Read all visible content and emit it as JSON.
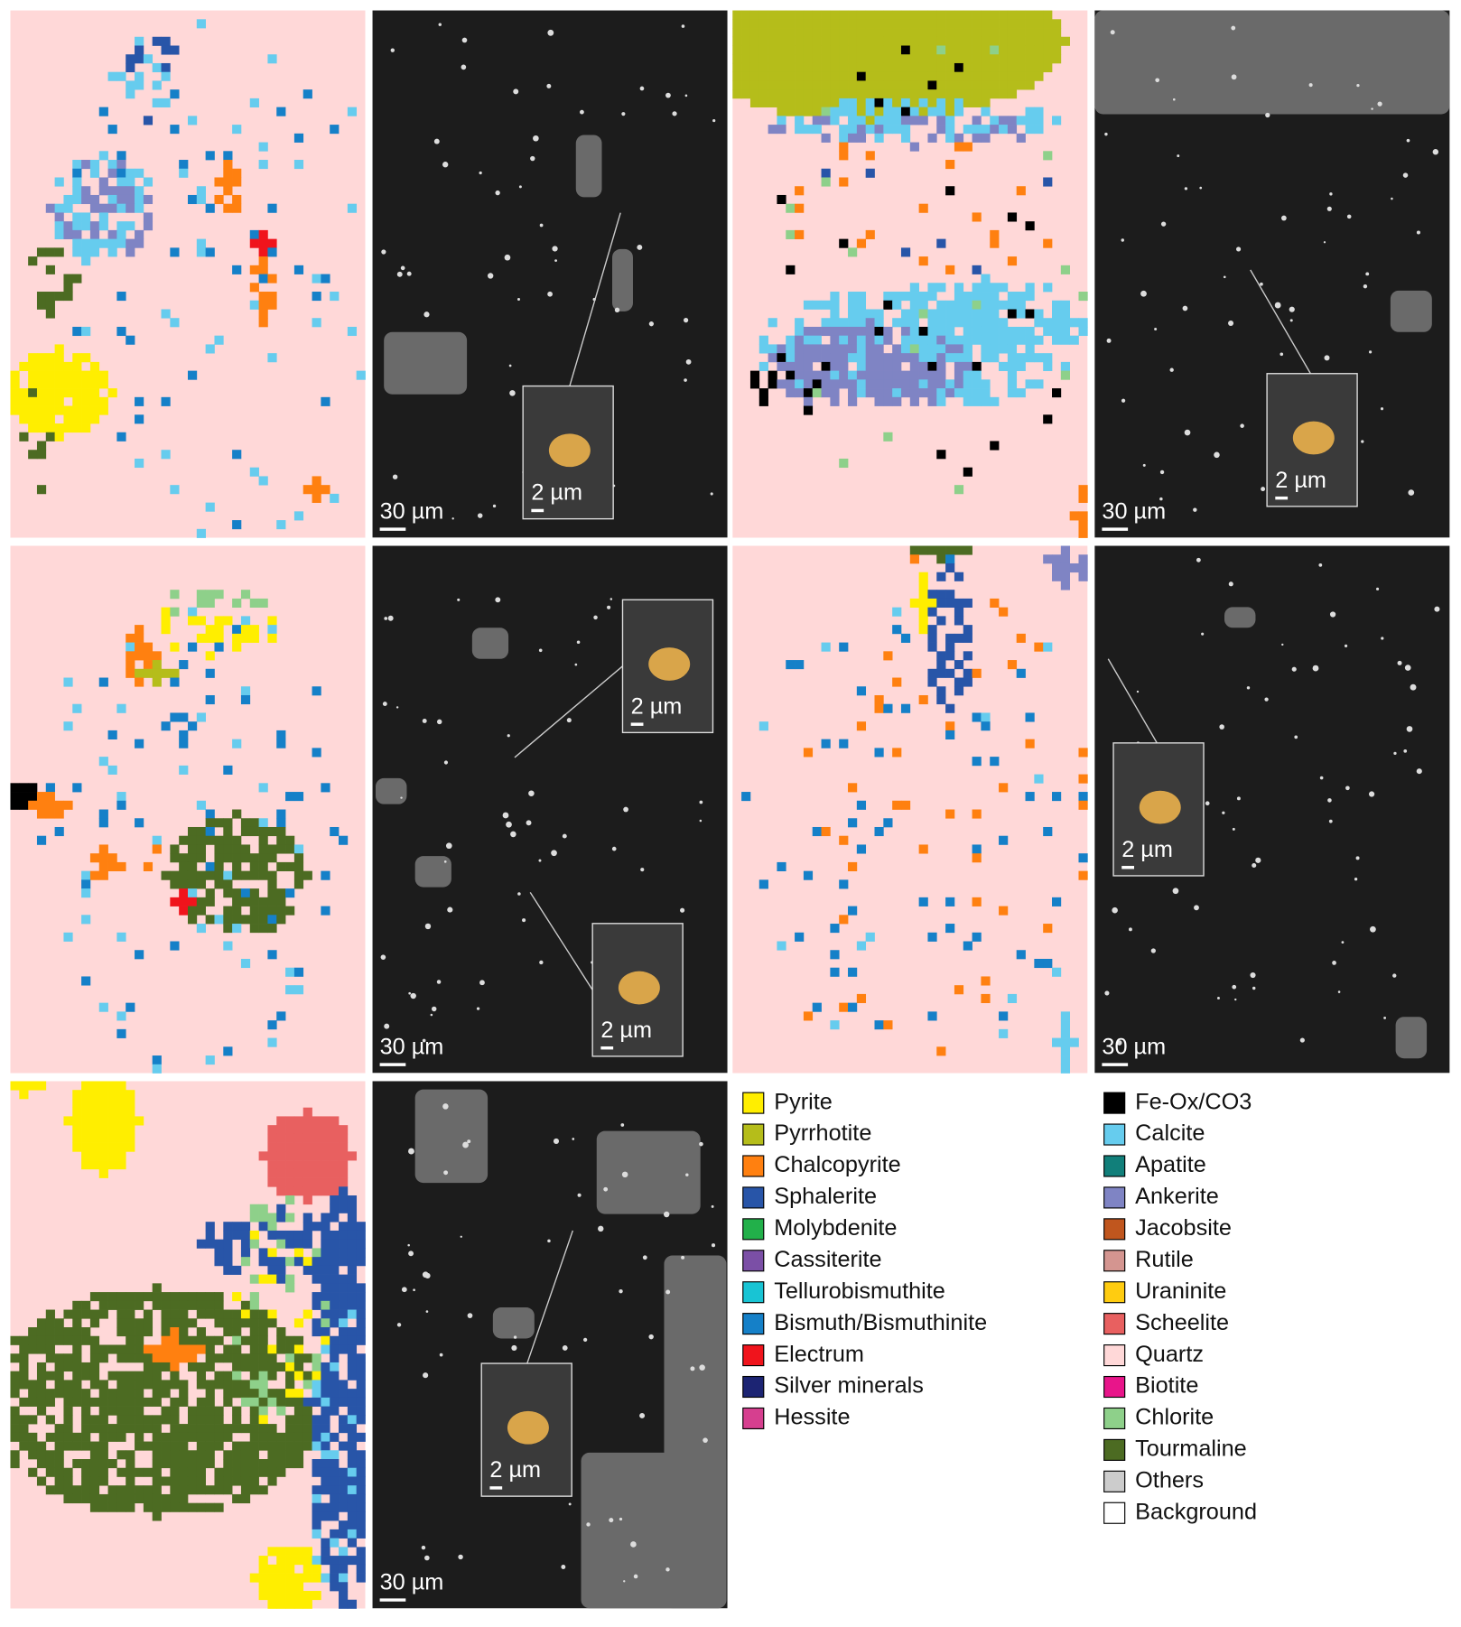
{
  "figure": {
    "sem_images": [
      {
        "scale_bar": "30 µm",
        "insets": [
          "2 µm"
        ]
      },
      {
        "scale_bar": "30 µm",
        "insets": [
          "2 µm"
        ]
      },
      {
        "scale_bar": "30 µm",
        "insets": [
          "2 µm",
          "2 µm"
        ]
      },
      {
        "scale_bar": "30 µm",
        "insets": [
          "2 µm"
        ]
      },
      {
        "scale_bar": "30 µm",
        "insets": [
          "2 µm"
        ]
      }
    ],
    "legend": [
      {
        "label": "Pyrite",
        "color": "#ffee00"
      },
      {
        "label": "Pyrrhotite",
        "color": "#b5bd1a"
      },
      {
        "label": "Chalcopyrite",
        "color": "#ff8010"
      },
      {
        "label": "Sphalerite",
        "color": "#2855a8"
      },
      {
        "label": "Molybdenite",
        "color": "#22b04a"
      },
      {
        "label": "Cassiterite",
        "color": "#7b4fa6"
      },
      {
        "label": "Tellurobismuthite",
        "color": "#18c4d4"
      },
      {
        "label": "Bismuth/Bismuthinite",
        "color": "#1580c8"
      },
      {
        "label": "Electrum",
        "color": "#f0141c"
      },
      {
        "label": "Silver minerals",
        "color": "#1c2473"
      },
      {
        "label": "Hessite",
        "color": "#d63f8f"
      },
      {
        "label": "Fe-Ox/CO3",
        "color": "#000000"
      },
      {
        "label": "Calcite",
        "color": "#66ccee"
      },
      {
        "label": "Apatite",
        "color": "#117f7a"
      },
      {
        "label": "Ankerite",
        "color": "#7f84c4"
      },
      {
        "label": "Jacobsite",
        "color": "#c0561e"
      },
      {
        "label": "Rutile",
        "color": "#d49590"
      },
      {
        "label": "Uraninite",
        "color": "#ffcc10"
      },
      {
        "label": "Scheelite",
        "color": "#e86060"
      },
      {
        "label": "Quartz",
        "color": "#ffd8d8"
      },
      {
        "label": "Biotite",
        "color": "#e8158a"
      },
      {
        "label": "Chlorite",
        "color": "#8ed08a"
      },
      {
        "label": "Tourmaline",
        "color": "#4c6b22"
      },
      {
        "label": "Others",
        "color": "#cccccc"
      },
      {
        "label": "Background",
        "color": "#ffffff"
      }
    ]
  }
}
